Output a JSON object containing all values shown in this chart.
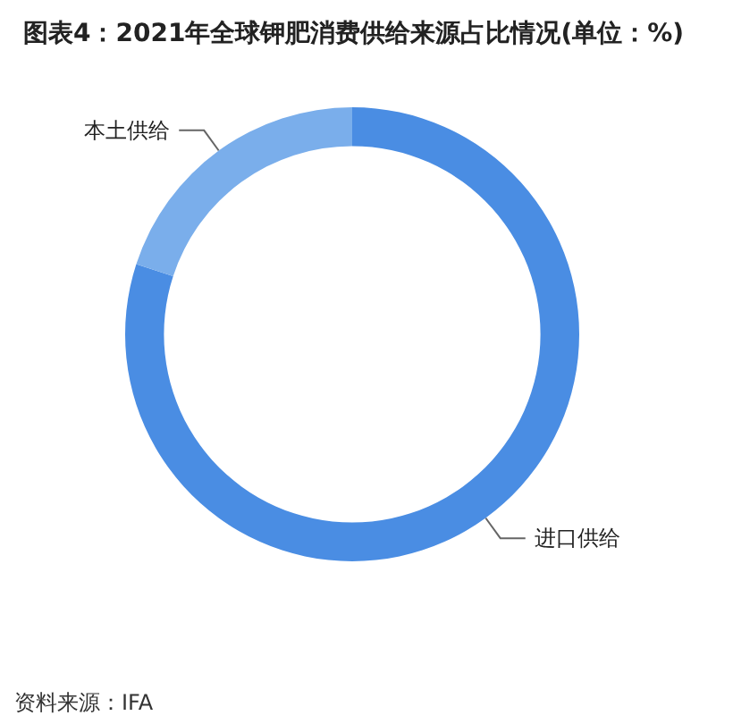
{
  "chart_data": {
    "type": "donut",
    "title": "图表4：2021年全球钾肥消费供给来源占比情况(单位：%)",
    "categories": [
      "进口供给",
      "本土供给"
    ],
    "values": [
      80,
      20
    ],
    "colors": [
      "#4a8de3",
      "#7aaeeb"
    ],
    "legend": false,
    "annotations": [
      "资料来源：IFA"
    ]
  }
}
